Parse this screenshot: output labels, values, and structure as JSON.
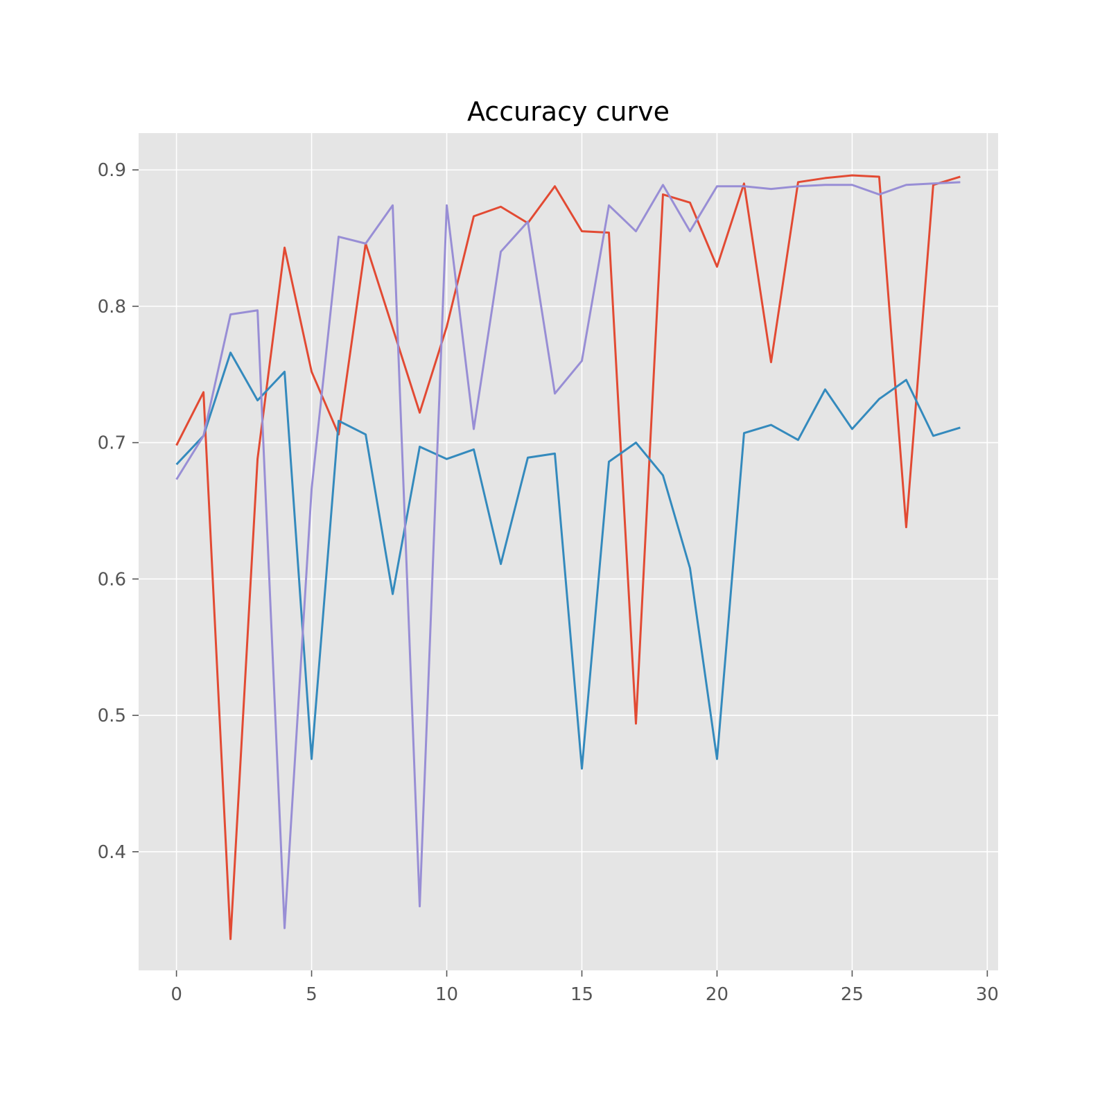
{
  "chart_data": {
    "type": "line",
    "title": "Accuracy curve",
    "xlabel": "",
    "ylabel": "",
    "xlim": [
      -1.4,
      30.4
    ],
    "ylim": [
      0.313,
      0.927
    ],
    "x_ticks": [
      0,
      5,
      10,
      15,
      20,
      25,
      30
    ],
    "y_ticks": [
      0.4,
      0.5,
      0.6,
      0.7,
      0.8,
      0.9
    ],
    "x_tick_labels": [
      "0",
      "5",
      "10",
      "15",
      "20",
      "25",
      "30"
    ],
    "y_tick_labels": [
      "0.4",
      "0.5",
      "0.6",
      "0.7",
      "0.8",
      "0.9"
    ],
    "grid": true,
    "x": [
      0,
      1,
      2,
      3,
      4,
      5,
      6,
      7,
      8,
      9,
      10,
      11,
      12,
      13,
      14,
      15,
      16,
      17,
      18,
      19,
      20,
      21,
      22,
      23,
      24,
      25,
      26,
      27,
      28,
      29
    ],
    "series": [
      {
        "color": "#E24A33",
        "values": [
          0.698,
          0.737,
          0.336,
          0.688,
          0.843,
          0.752,
          0.706,
          0.846,
          0.784,
          0.722,
          0.785,
          0.866,
          0.873,
          0.861,
          0.888,
          0.855,
          0.854,
          0.494,
          0.882,
          0.876,
          0.829,
          0.89,
          0.759,
          0.891,
          0.894,
          0.896,
          0.895,
          0.638,
          0.889,
          0.895
        ]
      },
      {
        "color": "#348ABD",
        "values": [
          0.684,
          0.705,
          0.766,
          0.731,
          0.752,
          0.468,
          0.716,
          0.706,
          0.589,
          0.697,
          0.688,
          0.695,
          0.611,
          0.689,
          0.692,
          0.461,
          0.686,
          0.7,
          0.676,
          0.608,
          0.468,
          0.707,
          0.713,
          0.702,
          0.739,
          0.71,
          0.732,
          0.746,
          0.705,
          0.711
        ]
      },
      {
        "color": "#988ED5",
        "values": [
          0.673,
          0.705,
          0.794,
          0.797,
          0.344,
          0.666,
          0.851,
          0.846,
          0.874,
          0.36,
          0.874,
          0.71,
          0.84,
          0.862,
          0.736,
          0.76,
          0.874,
          0.855,
          0.889,
          0.855,
          0.888,
          0.888,
          0.886,
          0.888,
          0.889,
          0.889,
          0.882,
          0.889,
          0.89,
          0.891
        ]
      }
    ]
  }
}
